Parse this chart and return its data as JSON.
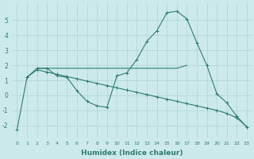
{
  "xlabel": "Humidex (Indice chaleur)",
  "x": [
    0,
    1,
    2,
    3,
    4,
    5,
    6,
    7,
    8,
    9,
    10,
    11,
    12,
    13,
    14,
    15,
    16,
    17,
    18,
    19,
    20,
    21,
    22,
    23
  ],
  "line1": [
    -2.3,
    1.2,
    1.8,
    1.8,
    1.3,
    1.2,
    0.3,
    -0.4,
    -0.7,
    -0.8,
    1.3,
    1.5,
    2.4,
    3.6,
    4.3,
    5.5,
    5.6,
    5.1,
    3.5,
    2.0,
    0.1,
    -0.5,
    -1.4,
    -2.1
  ],
  "line2_x": [
    2,
    3,
    4,
    5,
    6,
    7,
    8,
    9,
    10,
    11,
    12,
    13,
    14,
    15,
    16,
    17
  ],
  "line2_y": [
    1.8,
    1.8,
    1.8,
    1.8,
    1.8,
    1.8,
    1.8,
    1.8,
    1.8,
    1.8,
    1.8,
    1.8,
    1.8,
    1.8,
    1.8,
    2.0
  ],
  "line3_x": [
    1,
    2,
    3,
    4,
    5,
    6,
    7,
    8,
    9,
    10,
    11,
    12,
    13,
    14,
    15,
    16,
    17,
    18,
    19,
    20,
    21,
    22,
    23
  ],
  "line3_y": [
    1.2,
    1.7,
    1.55,
    1.4,
    1.25,
    1.1,
    0.95,
    0.8,
    0.65,
    0.5,
    0.35,
    0.2,
    0.05,
    -0.1,
    -0.25,
    -0.4,
    -0.55,
    -0.7,
    -0.85,
    -1.0,
    -1.2,
    -1.5,
    -2.1
  ],
  "color": "#2e7c6e",
  "bg_color": "#cdeaea",
  "ylim": [
    -2.8,
    6.2
  ],
  "yticks": [
    -2,
    -1,
    0,
    1,
    2,
    3,
    4,
    5
  ],
  "grid_color": "#aed4d4",
  "marker": "+"
}
